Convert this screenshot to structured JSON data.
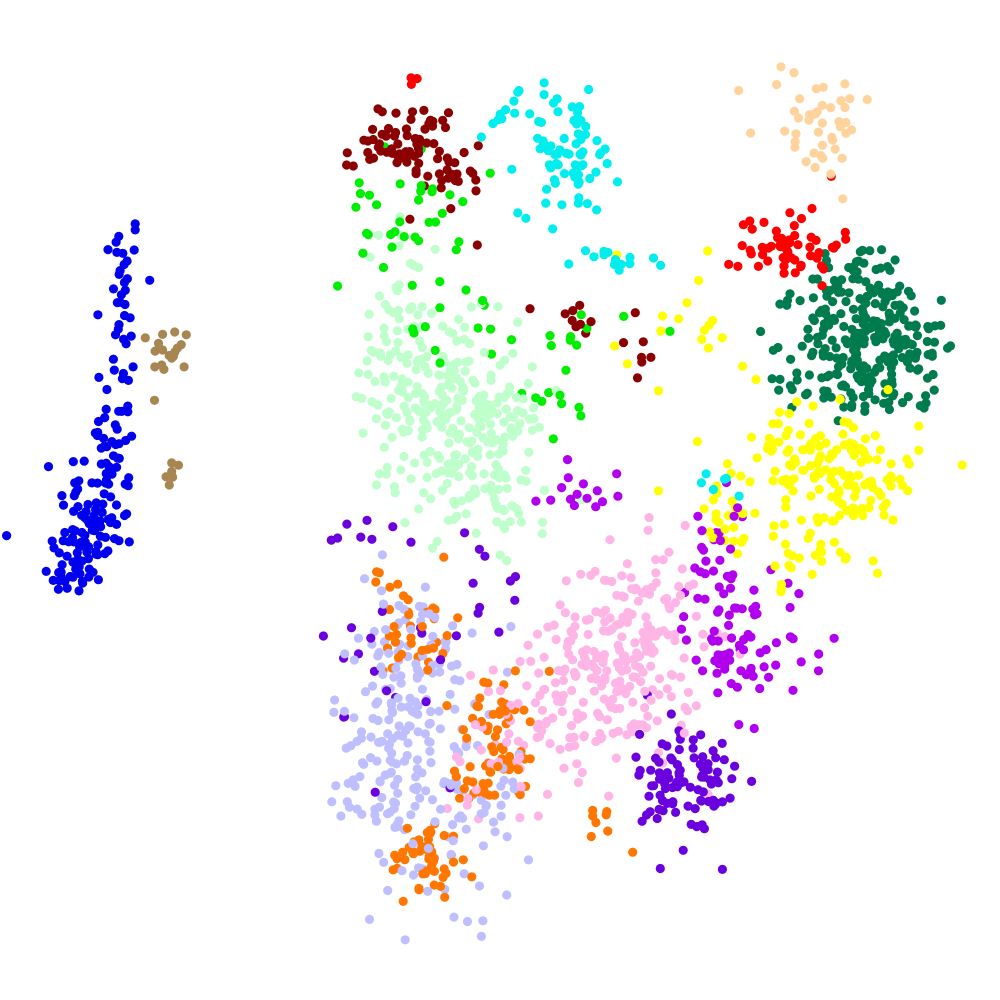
{
  "chart_data": {
    "type": "scatter",
    "title": "",
    "xlabel": "",
    "ylabel": "",
    "axes_visible": false,
    "grid": false,
    "legend": "none",
    "xlim": [
      0,
      100
    ],
    "ylim": [
      0,
      100
    ],
    "clusters": [
      {
        "color": "#0000ee",
        "centers": [
          [
            12.2,
            73.8
          ],
          [
            12.0,
            67.5
          ],
          [
            11.5,
            59.0
          ],
          [
            10.0,
            50.5
          ],
          [
            8.3,
            45.5
          ],
          [
            7.2,
            42.5
          ],
          [
            11.5,
            56.0
          ]
        ],
        "spread": [
          [
            1.0,
            2.5
          ],
          [
            1.2,
            2.5
          ],
          [
            1.2,
            3.0
          ],
          [
            2.0,
            2.5
          ],
          [
            2.0,
            2.0
          ],
          [
            1.2,
            1.2
          ],
          [
            1.2,
            2.0
          ]
        ],
        "counts": [
          18,
          12,
          18,
          45,
          50,
          18,
          15
        ]
      },
      {
        "color": "#a78652",
        "centers": [
          [
            17.0,
            65.0
          ],
          [
            17.2,
            52.0
          ]
        ],
        "spread": [
          [
            1.0,
            1.2
          ],
          [
            0.4,
            1.2
          ]
        ],
        "counts": [
          18,
          6
        ]
      },
      {
        "color": "#bfffcc",
        "centers": [
          [
            45.0,
            60.0
          ],
          [
            47.0,
            54.0
          ],
          [
            41.0,
            72.0
          ],
          [
            40.0,
            63.0
          ],
          [
            50.0,
            50.0
          ]
        ],
        "spread": [
          [
            3.5,
            4.0
          ],
          [
            4.0,
            3.5
          ],
          [
            2.5,
            3.0
          ],
          [
            3.0,
            4.0
          ],
          [
            2.5,
            2.0
          ]
        ],
        "counts": [
          160,
          90,
          20,
          40,
          30
        ]
      },
      {
        "color": "#00ee00",
        "centers": [
          [
            40.0,
            78.0
          ],
          [
            46.0,
            67.0
          ],
          [
            55.0,
            60.0
          ],
          [
            58.0,
            67.0
          ]
        ],
        "spread": [
          [
            3.0,
            3.5
          ],
          [
            3.0,
            2.0
          ],
          [
            2.0,
            2.0
          ],
          [
            3.0,
            1.0
          ]
        ],
        "counts": [
          35,
          12,
          10,
          10
        ]
      },
      {
        "color": "#8b0000",
        "centers": [
          [
            42.0,
            85.8
          ],
          [
            37.0,
            84.5
          ],
          [
            45.0,
            81.5
          ],
          [
            59.0,
            68.0
          ],
          [
            63.0,
            64.5
          ]
        ],
        "spread": [
          [
            2.0,
            2.0
          ],
          [
            1.2,
            1.2
          ],
          [
            2.0,
            2.0
          ],
          [
            2.5,
            1.0
          ],
          [
            1.5,
            1.5
          ]
        ],
        "counts": [
          55,
          15,
          15,
          10,
          6
        ]
      },
      {
        "color": "#00eeee",
        "centers": [
          [
            57.0,
            84.5
          ],
          [
            50.5,
            88.5
          ],
          [
            60.5,
            73.5
          ],
          [
            72.0,
            52.0
          ]
        ],
        "spread": [
          [
            2.5,
            3.0
          ],
          [
            1.5,
            1.0
          ],
          [
            2.5,
            1.0
          ],
          [
            1.5,
            1.0
          ]
        ],
        "counts": [
          70,
          12,
          14,
          6
        ]
      },
      {
        "color": "#ffd39b",
        "centers": [
          [
            81.5,
            88.0
          ]
        ],
        "spread": [
          [
            3.0,
            3.0
          ]
        ],
        "counts": [
          45
        ]
      },
      {
        "color": "#ff0000",
        "centers": [
          [
            79.0,
            75.5
          ],
          [
            41.5,
            92.0
          ]
        ],
        "spread": [
          [
            2.5,
            2.0
          ],
          [
            0.5,
            0.2
          ]
        ],
        "counts": [
          55,
          3
        ]
      },
      {
        "color": "#007b4e",
        "centers": [
          [
            87.0,
            66.0
          ],
          [
            86.0,
            70.0
          ],
          [
            84.0,
            62.0
          ],
          [
            92.0,
            65.0
          ]
        ],
        "spread": [
          [
            3.5,
            3.5
          ],
          [
            3.0,
            3.0
          ],
          [
            3.0,
            2.0
          ],
          [
            1.5,
            2.5
          ]
        ],
        "counts": [
          160,
          60,
          40,
          25
        ]
      },
      {
        "color": "#ffff00",
        "centers": [
          [
            85.0,
            52.0
          ],
          [
            79.0,
            55.0
          ],
          [
            72.5,
            49.0
          ],
          [
            78.0,
            45.0
          ],
          [
            68.0,
            65.0
          ]
        ],
        "spread": [
          [
            3.5,
            3.5
          ],
          [
            3.0,
            2.0
          ],
          [
            1.5,
            2.0
          ],
          [
            3.0,
            2.0
          ],
          [
            5.0,
            6.0
          ]
        ],
        "counts": [
          120,
          40,
          20,
          20,
          20
        ]
      },
      {
        "color": "#ffb6e6",
        "centers": [
          [
            62.5,
            35.0
          ],
          [
            58.5,
            29.0
          ],
          [
            50.0,
            26.0
          ],
          [
            65.0,
            40.0
          ]
        ],
        "spread": [
          [
            4.0,
            5.0
          ],
          [
            4.0,
            3.5
          ],
          [
            3.0,
            4.0
          ],
          [
            3.0,
            2.0
          ]
        ],
        "counts": [
          180,
          60,
          40,
          20
        ]
      },
      {
        "color": "#b000ee",
        "centers": [
          [
            72.5,
            37.0
          ],
          [
            72.5,
            46.0
          ],
          [
            79.0,
            38.0
          ],
          [
            57.0,
            51.0
          ]
        ],
        "spread": [
          [
            2.0,
            4.0
          ],
          [
            1.5,
            2.0
          ],
          [
            2.0,
            3.0
          ],
          [
            3.0,
            2.0
          ]
        ],
        "counts": [
          70,
          15,
          15,
          15
        ]
      },
      {
        "color": "#6a00dd",
        "centers": [
          [
            69.0,
            21.0
          ],
          [
            67.0,
            25.0
          ],
          [
            40.0,
            33.0
          ],
          [
            37.0,
            47.0
          ],
          [
            48.0,
            40.0
          ]
        ],
        "spread": [
          [
            2.5,
            3.0
          ],
          [
            2.0,
            2.0
          ],
          [
            4.0,
            6.0
          ],
          [
            2.5,
            1.0
          ],
          [
            2.5,
            4.0
          ]
        ],
        "counts": [
          80,
          15,
          18,
          8,
          10
        ]
      },
      {
        "color": "#bfbfff",
        "centers": [
          [
            41.0,
            27.0
          ],
          [
            40.0,
            35.0
          ],
          [
            45.0,
            15.0
          ],
          [
            39.0,
            21.0
          ],
          [
            50.0,
            20.0
          ]
        ],
        "spread": [
          [
            4.0,
            5.0
          ],
          [
            4.0,
            4.0
          ],
          [
            3.0,
            4.0
          ],
          [
            2.5,
            3.0
          ],
          [
            3.0,
            3.0
          ]
        ],
        "counts": [
          120,
          50,
          30,
          30,
          20
        ]
      },
      {
        "color": "#ff7700",
        "centers": [
          [
            42.5,
            14.0
          ],
          [
            42.0,
            37.0
          ],
          [
            49.5,
            28.5
          ],
          [
            48.0,
            21.5
          ],
          [
            51.0,
            23.5
          ],
          [
            38.0,
            42.0
          ],
          [
            60.0,
            18.0
          ]
        ],
        "spread": [
          [
            1.8,
            2.0
          ],
          [
            1.8,
            2.5
          ],
          [
            1.5,
            2.0
          ],
          [
            2.0,
            1.2
          ],
          [
            1.2,
            1.2
          ],
          [
            1.2,
            0.8
          ],
          [
            3.0,
            2.0
          ]
        ],
        "counts": [
          50,
          35,
          35,
          25,
          12,
          5,
          8
        ]
      }
    ]
  }
}
